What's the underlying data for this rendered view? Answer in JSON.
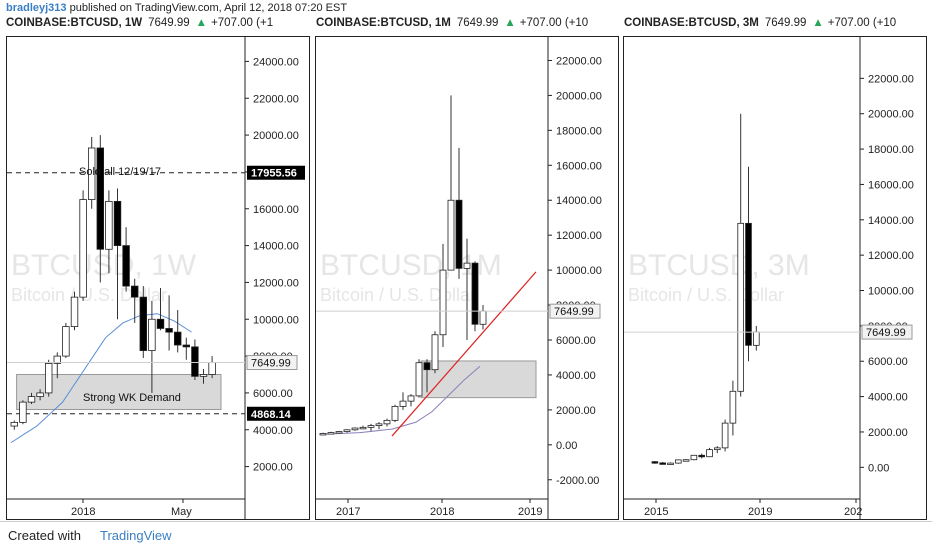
{
  "header": {
    "author": "bradleyj313",
    "published_text": "published on TradingView.com, April 12, 2018 07:20 EST"
  },
  "footer": {
    "created_with": "Created with",
    "brand": "TradingView"
  },
  "colors": {
    "up": "#ffffff",
    "down": "#000000",
    "accent_red": "#e02020",
    "ma_blue": "#5b8ed6",
    "ma_purple": "#8a7fb8"
  },
  "chart_data": [
    {
      "type": "candlestick",
      "symbol": "COINBASE:BTCUSD, 1W",
      "last_price": "7649.99",
      "change": "+707.00 (+1",
      "watermark": "BTCUSD, 1W",
      "watermark_sub": "Bitcoin / U.S. Dollar",
      "ylim": [
        1000,
        25000
      ],
      "yticks": [
        "24000.00",
        "22000.00",
        "20000.00",
        "18000.00",
        "16000.00",
        "14000.00",
        "12000.00",
        "10000.00",
        "8000.00",
        "6000.00",
        "4000.00",
        "2000.00"
      ],
      "xticks": [
        "2018",
        "May"
      ],
      "candles": [
        {
          "o": 4200,
          "h": 4500,
          "l": 4000,
          "c": 4400
        },
        {
          "o": 4400,
          "h": 5600,
          "l": 4300,
          "c": 5500
        },
        {
          "o": 5500,
          "h": 6000,
          "l": 5400,
          "c": 5800
        },
        {
          "o": 5800,
          "h": 6200,
          "l": 5600,
          "c": 6000
        },
        {
          "o": 6000,
          "h": 7800,
          "l": 5800,
          "c": 7600
        },
        {
          "o": 7600,
          "h": 8200,
          "l": 6800,
          "c": 8000
        },
        {
          "o": 8000,
          "h": 9800,
          "l": 7900,
          "c": 9600
        },
        {
          "o": 9600,
          "h": 11500,
          "l": 9400,
          "c": 11200
        },
        {
          "o": 11200,
          "h": 17000,
          "l": 11000,
          "c": 16500
        },
        {
          "o": 16500,
          "h": 19900,
          "l": 16000,
          "c": 19300
        },
        {
          "o": 19300,
          "h": 20000,
          "l": 12000,
          "c": 13800
        },
        {
          "o": 13800,
          "h": 17000,
          "l": 12500,
          "c": 16400
        },
        {
          "o": 16400,
          "h": 17100,
          "l": 10000,
          "c": 14000
        },
        {
          "o": 14000,
          "h": 15000,
          "l": 11500,
          "c": 11800
        },
        {
          "o": 11800,
          "h": 12200,
          "l": 9800,
          "c": 11200
        },
        {
          "o": 11200,
          "h": 11800,
          "l": 7900,
          "c": 8300
        },
        {
          "o": 8300,
          "h": 11000,
          "l": 6000,
          "c": 10000
        },
        {
          "o": 10000,
          "h": 11700,
          "l": 9400,
          "c": 9500
        },
        {
          "o": 9500,
          "h": 11300,
          "l": 8300,
          "c": 9300
        },
        {
          "o": 9300,
          "h": 10500,
          "l": 8200,
          "c": 8600
        },
        {
          "o": 8600,
          "h": 9000,
          "l": 7800,
          "c": 8500
        },
        {
          "o": 8500,
          "h": 8900,
          "l": 6700,
          "c": 6900
        },
        {
          "o": 6900,
          "h": 7300,
          "l": 6500,
          "c": 7000
        },
        {
          "o": 7000,
          "h": 8000,
          "l": 6800,
          "c": 7650
        }
      ],
      "ma": [
        {
          "i": 0,
          "v": 3300
        },
        {
          "i": 3,
          "v": 4200
        },
        {
          "i": 6,
          "v": 5500
        },
        {
          "i": 9,
          "v": 7600
        },
        {
          "i": 11,
          "v": 9000
        },
        {
          "i": 13,
          "v": 9800
        },
        {
          "i": 15,
          "v": 10200
        },
        {
          "i": 17,
          "v": 10300
        },
        {
          "i": 19,
          "v": 9900
        },
        {
          "i": 21,
          "v": 9300
        }
      ],
      "hlines": [
        {
          "value": 17955.56,
          "label": "17955.56"
        },
        {
          "value": 4868.14,
          "label": "4868.14"
        }
      ],
      "annotations": [
        "Sold all 12/19/17",
        "Strong WK Demand"
      ],
      "zone": {
        "from_index": 1,
        "low": 5100,
        "high": 7000
      }
    },
    {
      "type": "candlestick",
      "symbol": "COINBASE:BTCUSD, 1M",
      "last_price": "7649.99",
      "change": "+707.00 (+10",
      "watermark": "BTCUSD, 1M",
      "watermark_sub": "Bitcoin / U.S. Dollar",
      "ylim": [
        -2300,
        23000
      ],
      "yticks": [
        "22000.00",
        "20000.00",
        "18000.00",
        "16000.00",
        "14000.00",
        "12000.00",
        "10000.00",
        "8000.00",
        "6000.00",
        "4000.00",
        "2000.00",
        "0.00",
        "-2000.00"
      ],
      "xticks": [
        "2017",
        "2018",
        "2019"
      ],
      "candles": [
        {
          "o": 600,
          "h": 700,
          "l": 550,
          "c": 650
        },
        {
          "o": 650,
          "h": 750,
          "l": 600,
          "c": 700
        },
        {
          "o": 700,
          "h": 800,
          "l": 650,
          "c": 760
        },
        {
          "o": 760,
          "h": 900,
          "l": 700,
          "c": 860
        },
        {
          "o": 860,
          "h": 1000,
          "l": 800,
          "c": 960
        },
        {
          "o": 960,
          "h": 1100,
          "l": 900,
          "c": 1000
        },
        {
          "o": 1000,
          "h": 1200,
          "l": 800,
          "c": 1100
        },
        {
          "o": 1100,
          "h": 1300,
          "l": 900,
          "c": 1200
        },
        {
          "o": 1200,
          "h": 1500,
          "l": 1050,
          "c": 1400
        },
        {
          "o": 1400,
          "h": 2300,
          "l": 1300,
          "c": 2200
        },
        {
          "o": 2200,
          "h": 3000,
          "l": 2000,
          "c": 2500
        },
        {
          "o": 2500,
          "h": 2900,
          "l": 2200,
          "c": 2800
        },
        {
          "o": 2800,
          "h": 4900,
          "l": 2700,
          "c": 4700
        },
        {
          "o": 4700,
          "h": 4900,
          "l": 3000,
          "c": 4300
        },
        {
          "o": 4300,
          "h": 6500,
          "l": 4100,
          "c": 6300
        },
        {
          "o": 6300,
          "h": 11500,
          "l": 5600,
          "c": 10000
        },
        {
          "o": 10000,
          "h": 20000,
          "l": 10000,
          "c": 14000
        },
        {
          "o": 14000,
          "h": 17000,
          "l": 9500,
          "c": 10100
        },
        {
          "o": 10100,
          "h": 11800,
          "l": 6000,
          "c": 10400
        },
        {
          "o": 10400,
          "h": 10500,
          "l": 6500,
          "c": 6900
        },
        {
          "o": 6900,
          "h": 8000,
          "l": 6600,
          "c": 7650
        }
      ],
      "ma": [
        {
          "i": 0,
          "v": 600
        },
        {
          "i": 5,
          "v": 700
        },
        {
          "i": 9,
          "v": 900
        },
        {
          "i": 12,
          "v": 1300
        },
        {
          "i": 14,
          "v": 1900
        },
        {
          "i": 16,
          "v": 2800
        },
        {
          "i": 18,
          "v": 3700
        },
        {
          "i": 20,
          "v": 4500
        }
      ],
      "trendline": [
        {
          "i": 9,
          "v": 500
        },
        {
          "i": 27,
          "v": 9900
        }
      ],
      "zone": {
        "from_index": 13,
        "to_index": 27,
        "low": 2700,
        "high": 4800
      },
      "x_slots": 28
    },
    {
      "type": "candlestick",
      "symbol": "COINBASE:BTCUSD, 3M",
      "last_price": "7649.99",
      "change": "+707.00 (+10",
      "watermark": "BTCUSD, 3M",
      "watermark_sub": "Bitcoin / U.S. Dollar",
      "ylim": [
        -1000,
        24000
      ],
      "yticks": [
        "22000.00",
        "20000.00",
        "18000.00",
        "16000.00",
        "14000.00",
        "12000.00",
        "10000.00",
        "8000.00",
        "6000.00",
        "4000.00",
        "2000.00",
        "0.00"
      ],
      "xticks": [
        "2015",
        "2019",
        "202"
      ],
      "candles": [
        {
          "o": 320,
          "h": 350,
          "l": 200,
          "c": 250
        },
        {
          "o": 250,
          "h": 300,
          "l": 170,
          "c": 230
        },
        {
          "o": 230,
          "h": 280,
          "l": 190,
          "c": 240
        },
        {
          "o": 240,
          "h": 450,
          "l": 200,
          "c": 420
        },
        {
          "o": 420,
          "h": 460,
          "l": 380,
          "c": 430
        },
        {
          "o": 430,
          "h": 700,
          "l": 400,
          "c": 680
        },
        {
          "o": 680,
          "h": 780,
          "l": 500,
          "c": 600
        },
        {
          "o": 600,
          "h": 1100,
          "l": 580,
          "c": 1000
        },
        {
          "o": 1000,
          "h": 1200,
          "l": 800,
          "c": 1100
        },
        {
          "o": 1100,
          "h": 2700,
          "l": 900,
          "c": 2500
        },
        {
          "o": 2500,
          "h": 4900,
          "l": 1800,
          "c": 4300
        },
        {
          "o": 4300,
          "h": 20000,
          "l": 4000,
          "c": 13800
        },
        {
          "o": 13800,
          "h": 17000,
          "l": 6000,
          "c": 6900
        },
        {
          "o": 6900,
          "h": 8000,
          "l": 6600,
          "c": 7650
        }
      ],
      "x_slots": 30
    }
  ]
}
